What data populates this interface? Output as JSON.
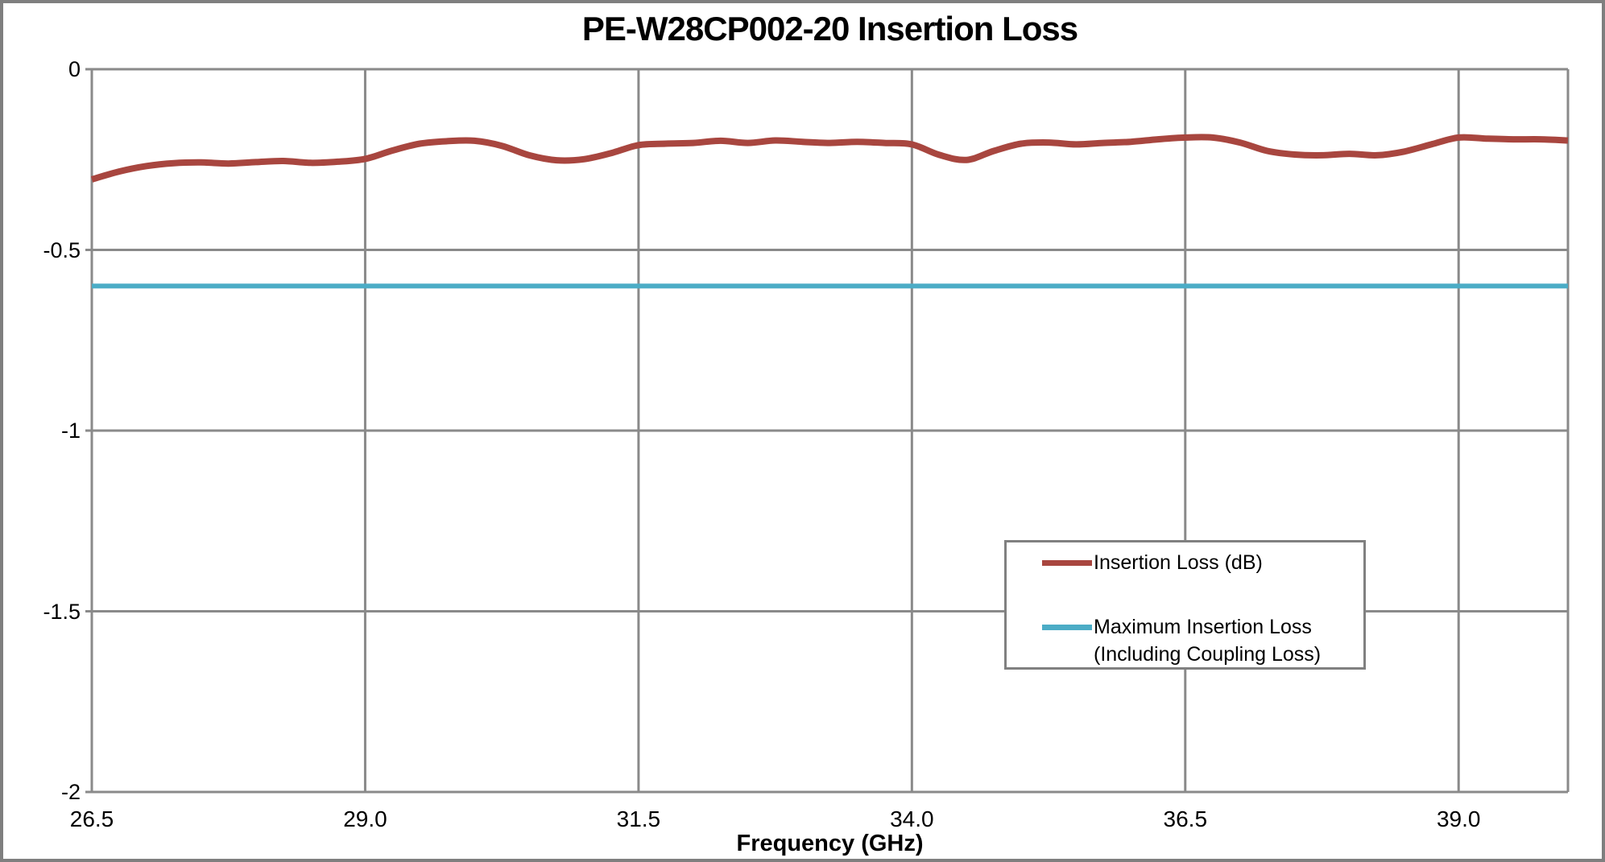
{
  "colors": {
    "series_red": "#a8463f",
    "series_teal": "#4bacc6",
    "gridline": "#8a8a8a",
    "frame_border": "#7f7f7f",
    "legend_border": "#808080",
    "text": "#000000",
    "background": "#ffffff"
  },
  "chart_data": {
    "type": "line",
    "title": "PE-W28CP002-20 Insertion Loss",
    "xlabel": "Frequency (GHz)",
    "ylabel": "",
    "xlim": [
      26.5,
      40.0
    ],
    "ylim": [
      -2,
      0
    ],
    "grid": true,
    "x_ticks": [
      26.5,
      29.0,
      31.5,
      34.0,
      36.5,
      39.0
    ],
    "x_tick_labels": [
      "26.5",
      "29.0",
      "31.5",
      "34.0",
      "36.5",
      "39.0"
    ],
    "y_ticks": [
      0,
      -0.5,
      -1,
      -1.5,
      -2
    ],
    "y_tick_labels": [
      "0",
      "-0.5",
      "-1",
      "-1.5",
      "-2"
    ],
    "legend_position": "inside-right",
    "series": [
      {
        "name": "Insertion Loss (dB)",
        "color": "#a8463f",
        "stroke_width": 8,
        "smooth": true,
        "x": [
          26.5,
          26.75,
          27.0,
          27.25,
          27.5,
          27.75,
          28.0,
          28.25,
          28.5,
          28.75,
          29.0,
          29.25,
          29.5,
          29.75,
          30.0,
          30.25,
          30.5,
          30.75,
          31.0,
          31.25,
          31.5,
          31.75,
          32.0,
          32.25,
          32.5,
          32.75,
          33.0,
          33.25,
          33.5,
          33.75,
          34.0,
          34.25,
          34.5,
          34.75,
          35.0,
          35.25,
          35.5,
          35.75,
          36.0,
          36.25,
          36.5,
          36.75,
          37.0,
          37.25,
          37.5,
          37.75,
          38.0,
          38.25,
          38.5,
          38.75,
          39.0,
          39.25,
          39.5,
          39.75,
          40.0
        ],
        "values": [
          -0.305,
          -0.283,
          -0.268,
          -0.26,
          -0.258,
          -0.261,
          -0.257,
          -0.254,
          -0.259,
          -0.256,
          -0.248,
          -0.225,
          -0.206,
          -0.199,
          -0.198,
          -0.212,
          -0.238,
          -0.252,
          -0.249,
          -0.232,
          -0.21,
          -0.206,
          -0.204,
          -0.198,
          -0.204,
          -0.197,
          -0.201,
          -0.204,
          -0.201,
          -0.204,
          -0.208,
          -0.237,
          -0.251,
          -0.226,
          -0.206,
          -0.203,
          -0.208,
          -0.204,
          -0.201,
          -0.194,
          -0.189,
          -0.189,
          -0.203,
          -0.226,
          -0.236,
          -0.238,
          -0.234,
          -0.238,
          -0.228,
          -0.208,
          -0.189,
          -0.192,
          -0.194,
          -0.194,
          -0.197
        ]
      },
      {
        "name": "Maximum Insertion Loss (Including Coupling Loss)",
        "color": "#4bacc6",
        "stroke_width": 6,
        "smooth": false,
        "x": [
          26.5,
          40.0
        ],
        "values": [
          -0.6,
          -0.6
        ]
      }
    ],
    "legend": [
      {
        "label_lines": [
          "Insertion Loss (dB)"
        ],
        "color": "#a8463f"
      },
      {
        "label_lines": [
          "Maximum Insertion Loss",
          "(Including Coupling Loss)"
        ],
        "color": "#4bacc6"
      }
    ]
  }
}
